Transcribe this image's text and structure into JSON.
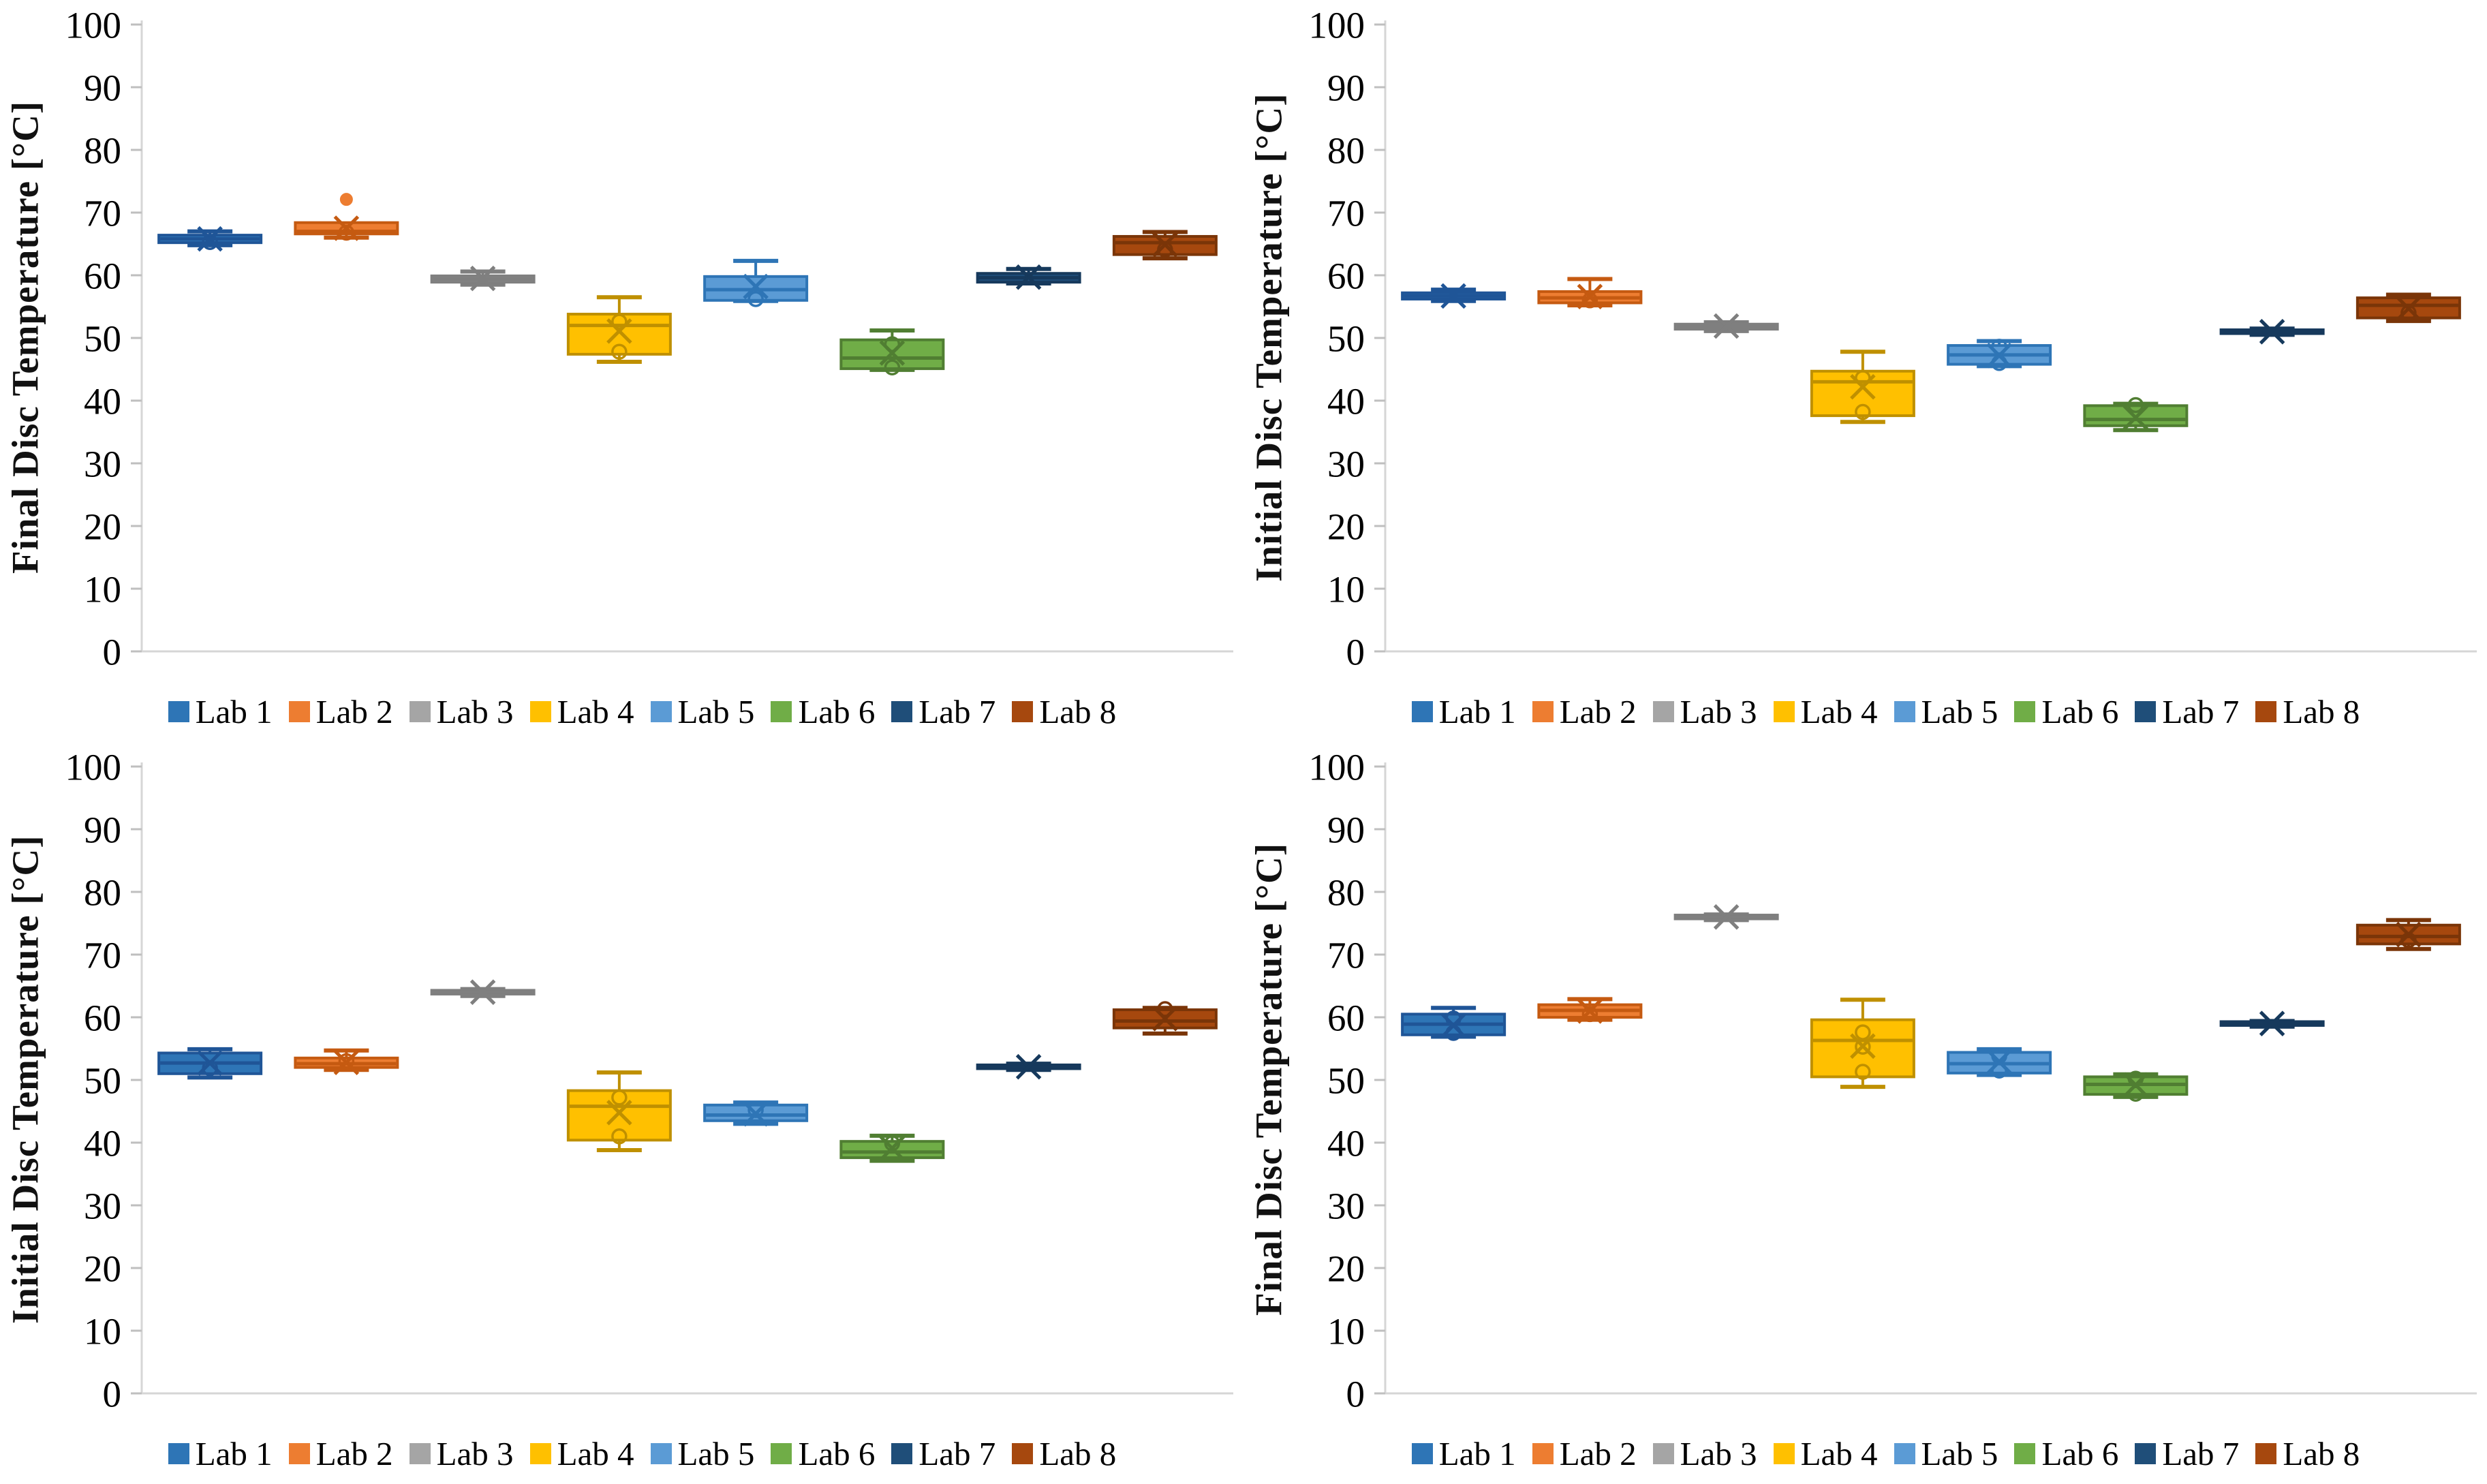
{
  "figure": {
    "rows": 2,
    "cols": 2,
    "background": "#ffffff"
  },
  "style": {
    "axis_line_color": "#d6d6d6",
    "tick_mark_color": "#bfbfbf",
    "tick_label_color": "#000000",
    "tick_font_size": 55,
    "legend_font_size": 49
  },
  "chart_data": [
    {
      "type": "box",
      "position": "top-left",
      "ylabel": "Final Disc Temperature [°C]",
      "ylim": [
        0,
        100
      ],
      "ytick_step": 10,
      "grid": false,
      "legend_position": "bottom",
      "series": [
        {
          "name": "Lab 1",
          "color": "#2E75B6",
          "border": "#1F5597",
          "whisker_low": 64.8,
          "q1": 65.2,
          "median": 65.8,
          "q3": 66.4,
          "whisker_high": 67.0,
          "mean": 65.8,
          "circles": [
            65.3
          ],
          "outliers": []
        },
        {
          "name": "Lab 2",
          "color": "#ED7D31",
          "border": "#C55A11",
          "whisker_low": 66.0,
          "q1": 66.6,
          "median": 67.0,
          "q3": 68.4,
          "whisker_high": 68.4,
          "mean": 67.5,
          "circles": [
            66.8
          ],
          "outliers": [
            72.1
          ]
        },
        {
          "name": "Lab 3",
          "color": "#A5A5A5",
          "border": "#7F7F7F",
          "whisker_low": 58.5,
          "q1": 58.9,
          "median": 59.4,
          "q3": 59.9,
          "whisker_high": 60.6,
          "mean": 59.5,
          "circles": [],
          "outliers": []
        },
        {
          "name": "Lab 4",
          "color": "#FFC000",
          "border": "#BF9000",
          "whisker_low": 46.2,
          "q1": 47.4,
          "median": 52.0,
          "q3": 53.8,
          "whisker_high": 56.5,
          "mean": 51.1,
          "circles": [
            52.6,
            47.8
          ],
          "outliers": []
        },
        {
          "name": "Lab 5",
          "color": "#5B9BD5",
          "border": "#2E75B6",
          "whisker_low": 55.9,
          "q1": 56.0,
          "median": 57.7,
          "q3": 59.8,
          "whisker_high": 62.3,
          "mean": 58.2,
          "circles": [
            56.2
          ],
          "outliers": []
        },
        {
          "name": "Lab 6",
          "color": "#70AD47",
          "border": "#507E32",
          "whisker_low": 44.9,
          "q1": 45.1,
          "median": 46.8,
          "q3": 49.7,
          "whisker_high": 51.2,
          "mean": 47.6,
          "circles": [
            49.0,
            45.3
          ],
          "outliers": []
        },
        {
          "name": "Lab 7",
          "color": "#1F4E79",
          "border": "#16395C",
          "whisker_low": 58.7,
          "q1": 58.9,
          "median": 59.6,
          "q3": 60.3,
          "whisker_high": 61.0,
          "mean": 59.7,
          "circles": [],
          "outliers": []
        },
        {
          "name": "Lab 8",
          "color": "#A6480E",
          "border": "#7A3508",
          "whisker_low": 62.7,
          "q1": 63.3,
          "median": 65.2,
          "q3": 66.2,
          "whisker_high": 66.9,
          "mean": 64.9,
          "circles": [
            64.1
          ],
          "outliers": []
        }
      ]
    },
    {
      "type": "box",
      "position": "top-right",
      "ylabel": "Initial Disc Temperature [°C]",
      "ylim": [
        0,
        100
      ],
      "ytick_step": 10,
      "grid": false,
      "legend_position": "bottom",
      "series": [
        {
          "name": "Lab 1",
          "color": "#2E75B6",
          "border": "#1F5597",
          "whisker_low": 55.9,
          "q1": 56.2,
          "median": 56.7,
          "q3": 57.2,
          "whisker_high": 57.7,
          "mean": 56.7,
          "circles": [],
          "outliers": []
        },
        {
          "name": "Lab 2",
          "color": "#ED7D31",
          "border": "#C55A11",
          "whisker_low": 55.2,
          "q1": 55.6,
          "median": 56.4,
          "q3": 57.4,
          "whisker_high": 59.4,
          "mean": 56.6,
          "circles": [
            56.0
          ],
          "outliers": []
        },
        {
          "name": "Lab 3",
          "color": "#A5A5A5",
          "border": "#7F7F7F",
          "whisker_low": 51.1,
          "q1": 51.4,
          "median": 51.8,
          "q3": 52.2,
          "whisker_high": 52.5,
          "mean": 51.9,
          "circles": [],
          "outliers": []
        },
        {
          "name": "Lab 4",
          "color": "#FFC000",
          "border": "#BF9000",
          "whisker_low": 36.6,
          "q1": 37.6,
          "median": 43.0,
          "q3": 44.7,
          "whisker_high": 47.8,
          "mean": 42.2,
          "circles": [
            43.6,
            38.2
          ],
          "outliers": []
        },
        {
          "name": "Lab 5",
          "color": "#5B9BD5",
          "border": "#2E75B6",
          "whisker_low": 45.5,
          "q1": 45.8,
          "median": 47.3,
          "q3": 48.8,
          "whisker_high": 49.5,
          "mean": 47.2,
          "circles": [
            48.6,
            46.0
          ],
          "outliers": []
        },
        {
          "name": "Lab 6",
          "color": "#70AD47",
          "border": "#507E32",
          "whisker_low": 35.3,
          "q1": 36.0,
          "median": 37.0,
          "q3": 39.2,
          "whisker_high": 39.5,
          "mean": 37.3,
          "circles": [
            39.3
          ],
          "outliers": []
        },
        {
          "name": "Lab 7",
          "color": "#1F4E79",
          "border": "#16395C",
          "whisker_low": 50.5,
          "q1": 50.7,
          "median": 51.0,
          "q3": 51.3,
          "whisker_high": 51.5,
          "mean": 51.0,
          "circles": [],
          "outliers": []
        },
        {
          "name": "Lab 8",
          "color": "#A6480E",
          "border": "#7A3508",
          "whisker_low": 52.7,
          "q1": 53.2,
          "median": 55.2,
          "q3": 56.4,
          "whisker_high": 56.9,
          "mean": 54.7,
          "circles": [
            54.0
          ],
          "outliers": []
        }
      ]
    },
    {
      "type": "box",
      "position": "bottom-left",
      "ylabel": "Initial Disc Temperature [°C]",
      "ylim": [
        0,
        100
      ],
      "ytick_step": 10,
      "grid": false,
      "legend_position": "bottom",
      "series": [
        {
          "name": "Lab 1",
          "color": "#2E75B6",
          "border": "#1F5597",
          "whisker_low": 50.4,
          "q1": 51.0,
          "median": 52.7,
          "q3": 54.3,
          "whisker_high": 54.9,
          "mean": 52.7,
          "circles": [
            51.9
          ],
          "outliers": []
        },
        {
          "name": "Lab 2",
          "color": "#ED7D31",
          "border": "#C55A11",
          "whisker_low": 51.6,
          "q1": 52.0,
          "median": 52.6,
          "q3": 53.5,
          "whisker_high": 54.7,
          "mean": 52.8,
          "circles": [
            53.0
          ],
          "outliers": []
        },
        {
          "name": "Lab 3",
          "color": "#A5A5A5",
          "border": "#7F7F7F",
          "whisker_low": 63.4,
          "q1": 63.7,
          "median": 64.0,
          "q3": 64.3,
          "whisker_high": 64.5,
          "mean": 64.0,
          "circles": [],
          "outliers": []
        },
        {
          "name": "Lab 4",
          "color": "#FFC000",
          "border": "#BF9000",
          "whisker_low": 38.8,
          "q1": 40.4,
          "median": 45.8,
          "q3": 48.3,
          "whisker_high": 51.2,
          "mean": 44.8,
          "circles": [
            47.2,
            41.0
          ],
          "outliers": []
        },
        {
          "name": "Lab 5",
          "color": "#5B9BD5",
          "border": "#2E75B6",
          "whisker_low": 43.0,
          "q1": 43.5,
          "median": 44.4,
          "q3": 46.0,
          "whisker_high": 46.4,
          "mean": 44.6,
          "circles": [
            45.2
          ],
          "outliers": []
        },
        {
          "name": "Lab 6",
          "color": "#70AD47",
          "border": "#507E32",
          "whisker_low": 37.1,
          "q1": 37.6,
          "median": 38.5,
          "q3": 40.2,
          "whisker_high": 41.1,
          "mean": 39.1,
          "circles": [
            39.9
          ],
          "outliers": []
        },
        {
          "name": "Lab 7",
          "color": "#1F4E79",
          "border": "#16395C",
          "whisker_low": 51.6,
          "q1": 51.8,
          "median": 52.1,
          "q3": 52.4,
          "whisker_high": 52.6,
          "mean": 52.1,
          "circles": [],
          "outliers": []
        },
        {
          "name": "Lab 8",
          "color": "#A6480E",
          "border": "#7A3508",
          "whisker_low": 57.4,
          "q1": 58.3,
          "median": 59.4,
          "q3": 61.2,
          "whisker_high": 61.5,
          "mean": 59.8,
          "circles": [
            61.3
          ],
          "outliers": []
        }
      ]
    },
    {
      "type": "box",
      "position": "bottom-right",
      "ylabel": "Final Disc Temperature [°C]",
      "ylim": [
        0,
        100
      ],
      "ytick_step": 10,
      "grid": false,
      "legend_position": "bottom",
      "series": [
        {
          "name": "Lab 1",
          "color": "#2E75B6",
          "border": "#1F5597",
          "whisker_low": 56.9,
          "q1": 57.2,
          "median": 58.9,
          "q3": 60.5,
          "whisker_high": 61.5,
          "mean": 58.7,
          "circles": [
            59.8,
            57.5
          ],
          "outliers": []
        },
        {
          "name": "Lab 2",
          "color": "#ED7D31",
          "border": "#C55A11",
          "whisker_low": 59.6,
          "q1": 60.0,
          "median": 61.1,
          "q3": 62.0,
          "whisker_high": 62.9,
          "mean": 61.0,
          "circles": [
            60.5
          ],
          "outliers": []
        },
        {
          "name": "Lab 3",
          "color": "#A5A5A5",
          "border": "#7F7F7F",
          "whisker_low": 75.5,
          "q1": 75.7,
          "median": 76.0,
          "q3": 76.3,
          "whisker_high": 76.4,
          "mean": 76.0,
          "circles": [],
          "outliers": []
        },
        {
          "name": "Lab 4",
          "color": "#FFC000",
          "border": "#BF9000",
          "whisker_low": 48.9,
          "q1": 50.5,
          "median": 56.3,
          "q3": 59.6,
          "whisker_high": 62.8,
          "mean": 55.4,
          "circles": [
            57.6,
            55.3,
            51.3
          ],
          "outliers": []
        },
        {
          "name": "Lab 5",
          "color": "#5B9BD5",
          "border": "#2E75B6",
          "whisker_low": 50.8,
          "q1": 51.1,
          "median": 52.6,
          "q3": 54.4,
          "whisker_high": 54.9,
          "mean": 52.9,
          "circles": [
            53.8,
            51.5
          ],
          "outliers": []
        },
        {
          "name": "Lab 6",
          "color": "#70AD47",
          "border": "#507E32",
          "whisker_low": 47.3,
          "q1": 47.7,
          "median": 49.3,
          "q3": 50.5,
          "whisker_high": 50.9,
          "mean": 49.2,
          "circles": [
            50.2,
            47.8
          ],
          "outliers": []
        },
        {
          "name": "Lab 7",
          "color": "#1F4E79",
          "border": "#16395C",
          "whisker_low": 58.5,
          "q1": 58.7,
          "median": 59.0,
          "q3": 59.3,
          "whisker_high": 59.4,
          "mean": 59.0,
          "circles": [],
          "outliers": []
        },
        {
          "name": "Lab 8",
          "color": "#A6480E",
          "border": "#7A3508",
          "whisker_low": 70.9,
          "q1": 71.7,
          "median": 72.9,
          "q3": 74.7,
          "whisker_high": 75.5,
          "mean": 73.2,
          "circles": [
            72.3
          ],
          "outliers": []
        }
      ]
    }
  ]
}
